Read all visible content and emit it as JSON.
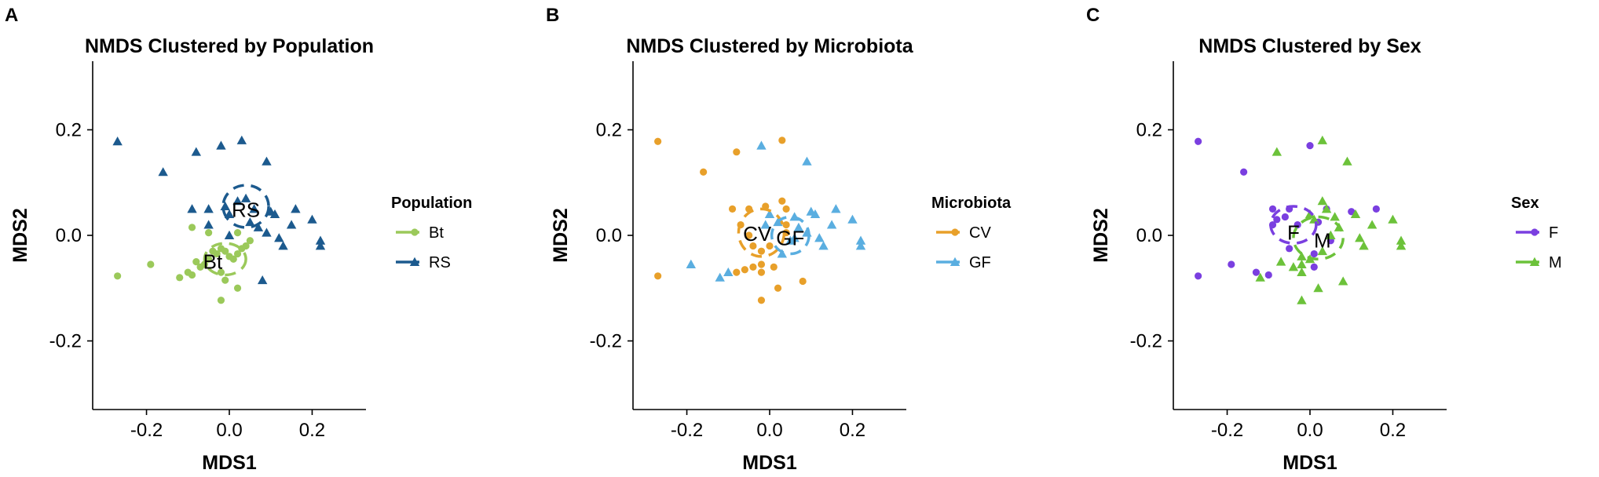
{
  "chart_data": [
    {
      "type": "scatter",
      "panel": "A",
      "title": "NMDS Clustered by Population",
      "xlabel": "MDS1",
      "ylabel": "MDS2",
      "xlim": [
        -0.33,
        0.33
      ],
      "ylim": [
        -0.33,
        0.33
      ],
      "xticks": [
        -0.2,
        0.0,
        0.2
      ],
      "yticks": [
        -0.2,
        0.0,
        0.2
      ],
      "tick_labels_x": [
        "-0.2",
        "0.0",
        "0.2"
      ],
      "tick_labels_y": [
        "-0.2",
        "0.0",
        "0.2"
      ],
      "grid": false,
      "legend": {
        "title": "Population",
        "position": "right"
      },
      "series": [
        {
          "name": "Bt",
          "color": "#9bc95a",
          "marker": "circle",
          "label_at": [
            -0.04,
            -0.05
          ],
          "ellipse": {
            "cx": -0.01,
            "cy": -0.045,
            "rx": 0.05,
            "ry": 0.03
          },
          "points": [
            [
              -0.27,
              -0.077
            ],
            [
              -0.19,
              -0.055
            ],
            [
              -0.12,
              -0.08
            ],
            [
              -0.1,
              -0.07
            ],
            [
              -0.09,
              -0.075
            ],
            [
              -0.08,
              -0.05
            ],
            [
              -0.07,
              -0.06
            ],
            [
              -0.06,
              -0.055
            ],
            [
              -0.05,
              -0.045
            ],
            [
              -0.04,
              -0.03
            ],
            [
              -0.03,
              -0.035
            ],
            [
              -0.02,
              -0.025
            ],
            [
              -0.01,
              -0.03
            ],
            [
              0.0,
              -0.04
            ],
            [
              0.01,
              -0.045
            ],
            [
              -0.02,
              -0.07
            ],
            [
              -0.01,
              -0.085
            ],
            [
              0.02,
              -0.035
            ],
            [
              0.03,
              -0.025
            ],
            [
              0.04,
              -0.02
            ],
            [
              0.05,
              -0.01
            ],
            [
              0.02,
              -0.1
            ],
            [
              -0.02,
              -0.123
            ],
            [
              -0.09,
              0.015
            ],
            [
              -0.05,
              0.005
            ],
            [
              0.02,
              0.005
            ]
          ]
        },
        {
          "name": "RS",
          "color": "#1c5a8e",
          "marker": "triangle",
          "label_at": [
            0.04,
            0.048
          ],
          "ellipse": {
            "cx": 0.04,
            "cy": 0.055,
            "rx": 0.055,
            "ry": 0.04
          },
          "points": [
            [
              -0.27,
              0.178
            ],
            [
              -0.16,
              0.12
            ],
            [
              -0.08,
              0.158
            ],
            [
              -0.02,
              0.17
            ],
            [
              0.03,
              0.18
            ],
            [
              0.09,
              0.14
            ],
            [
              -0.09,
              0.05
            ],
            [
              -0.05,
              0.05
            ],
            [
              -0.01,
              0.055
            ],
            [
              0.0,
              0.04
            ],
            [
              0.02,
              0.065
            ],
            [
              0.04,
              0.07
            ],
            [
              0.06,
              0.05
            ],
            [
              0.1,
              0.045
            ],
            [
              0.11,
              0.04
            ],
            [
              0.05,
              0.025
            ],
            [
              0.07,
              0.015
            ],
            [
              0.16,
              0.05
            ],
            [
              0.2,
              0.03
            ],
            [
              -0.05,
              0.02
            ],
            [
              0.09,
              0.005
            ],
            [
              0.12,
              -0.005
            ],
            [
              0.13,
              -0.02
            ],
            [
              0.15,
              0.02
            ],
            [
              0.22,
              -0.01
            ],
            [
              0.22,
              -0.02
            ],
            [
              0.08,
              -0.085
            ],
            [
              -0.0,
              0.0
            ]
          ]
        }
      ]
    },
    {
      "type": "scatter",
      "panel": "B",
      "title": "NMDS Clustered by Microbiota",
      "xlabel": "MDS1",
      "ylabel": "MDS2",
      "xlim": [
        -0.33,
        0.33
      ],
      "ylim": [
        -0.33,
        0.33
      ],
      "xticks": [
        -0.2,
        0.0,
        0.2
      ],
      "yticks": [
        -0.2,
        0.0,
        0.2
      ],
      "tick_labels_x": [
        "-0.2",
        "0.0",
        "0.2"
      ],
      "tick_labels_y": [
        "-0.2",
        "0.0",
        "0.2"
      ],
      "grid": false,
      "legend": {
        "title": "Microbiota",
        "position": "right"
      },
      "series": [
        {
          "name": "CV",
          "color": "#e8a02a",
          "marker": "circle",
          "label_at": [
            -0.03,
            0.003
          ],
          "ellipse": {
            "cx": -0.02,
            "cy": 0.005,
            "rx": 0.055,
            "ry": 0.045
          },
          "points": [
            [
              -0.27,
              0.178
            ],
            [
              -0.27,
              -0.077
            ],
            [
              -0.16,
              0.12
            ],
            [
              -0.08,
              0.158
            ],
            [
              0.03,
              0.18
            ],
            [
              -0.09,
              0.05
            ],
            [
              -0.05,
              0.05
            ],
            [
              0.03,
              0.065
            ],
            [
              0.04,
              0.05
            ],
            [
              -0.01,
              0.055
            ],
            [
              -0.07,
              0.02
            ],
            [
              -0.05,
              0.0
            ],
            [
              -0.04,
              -0.02
            ],
            [
              -0.02,
              -0.03
            ],
            [
              0.0,
              -0.02
            ],
            [
              -0.08,
              -0.07
            ],
            [
              -0.06,
              -0.065
            ],
            [
              -0.04,
              -0.06
            ],
            [
              -0.02,
              -0.055
            ],
            [
              -0.02,
              -0.07
            ],
            [
              0.01,
              -0.06
            ],
            [
              0.02,
              -0.1
            ],
            [
              0.08,
              -0.087
            ],
            [
              -0.02,
              -0.123
            ],
            [
              0.04,
              0.02
            ],
            [
              0.04,
              0.005
            ]
          ]
        },
        {
          "name": "GF",
          "color": "#5aaee0",
          "marker": "triangle",
          "label_at": [
            0.05,
            -0.005
          ],
          "ellipse": {
            "cx": 0.05,
            "cy": 0.0,
            "rx": 0.045,
            "ry": 0.035
          },
          "points": [
            [
              -0.02,
              0.17
            ],
            [
              0.09,
              0.14
            ],
            [
              -0.19,
              -0.055
            ],
            [
              -0.12,
              -0.08
            ],
            [
              -0.1,
              -0.07
            ],
            [
              0.0,
              0.04
            ],
            [
              0.02,
              0.025
            ],
            [
              0.06,
              0.035
            ],
            [
              0.1,
              0.045
            ],
            [
              0.11,
              0.04
            ],
            [
              0.07,
              0.015
            ],
            [
              0.16,
              0.05
            ],
            [
              0.2,
              0.03
            ],
            [
              0.09,
              0.005
            ],
            [
              0.12,
              -0.005
            ],
            [
              0.13,
              -0.02
            ],
            [
              0.15,
              0.02
            ],
            [
              0.22,
              -0.01
            ],
            [
              0.22,
              -0.02
            ],
            [
              0.05,
              -0.01
            ],
            [
              0.03,
              -0.035
            ],
            [
              0.06,
              -0.005
            ],
            [
              -0.01,
              0.02
            ]
          ]
        }
      ]
    },
    {
      "type": "scatter",
      "panel": "C",
      "title": "NMDS Clustered by Sex",
      "xlabel": "MDS1",
      "ylabel": "MDS2",
      "xlim": [
        -0.33,
        0.33
      ],
      "ylim": [
        -0.33,
        0.33
      ],
      "xticks": [
        -0.2,
        0.0,
        0.2
      ],
      "yticks": [
        -0.2,
        0.0,
        0.2
      ],
      "tick_labels_x": [
        "-0.2",
        "0.0",
        "0.2"
      ],
      "tick_labels_y": [
        "-0.2",
        "0.0",
        "0.2"
      ],
      "grid": false,
      "legend": {
        "title": "Sex",
        "position": "right"
      },
      "series": [
        {
          "name": "F",
          "color": "#7a3fe0",
          "marker": "circle",
          "label_at": [
            -0.04,
            0.005
          ],
          "ellipse": {
            "cx": -0.04,
            "cy": 0.02,
            "rx": 0.055,
            "ry": 0.035
          },
          "points": [
            [
              -0.27,
              0.178
            ],
            [
              -0.27,
              -0.077
            ],
            [
              -0.16,
              0.12
            ],
            [
              -0.0,
              0.17
            ],
            [
              -0.19,
              -0.055
            ],
            [
              -0.09,
              0.05
            ],
            [
              -0.05,
              0.05
            ],
            [
              -0.08,
              0.03
            ],
            [
              -0.09,
              0.02
            ],
            [
              -0.06,
              0.035
            ],
            [
              -0.03,
              0.02
            ],
            [
              0.02,
              0.025
            ],
            [
              0.04,
              0.05
            ],
            [
              0.1,
              0.045
            ],
            [
              0.16,
              0.05
            ],
            [
              0.01,
              -0.035
            ],
            [
              0.05,
              -0.01
            ],
            [
              0.01,
              -0.06
            ],
            [
              -0.05,
              -0.025
            ],
            [
              -0.13,
              -0.07
            ],
            [
              -0.1,
              -0.075
            ]
          ]
        },
        {
          "name": "M",
          "color": "#6cc23a",
          "marker": "triangle",
          "label_at": [
            0.03,
            -0.01
          ],
          "ellipse": {
            "cx": 0.02,
            "cy": -0.005,
            "rx": 0.06,
            "ry": 0.04
          },
          "points": [
            [
              -0.08,
              0.158
            ],
            [
              0.03,
              0.18
            ],
            [
              0.09,
              0.14
            ],
            [
              0.03,
              0.065
            ],
            [
              0.04,
              0.05
            ],
            [
              0.01,
              0.03
            ],
            [
              0.06,
              0.035
            ],
            [
              0.0,
              0.04
            ],
            [
              0.07,
              0.015
            ],
            [
              0.11,
              0.04
            ],
            [
              0.12,
              -0.005
            ],
            [
              0.13,
              -0.02
            ],
            [
              0.15,
              0.02
            ],
            [
              0.2,
              0.03
            ],
            [
              0.22,
              -0.01
            ],
            [
              0.22,
              -0.02
            ],
            [
              -0.12,
              -0.08
            ],
            [
              -0.07,
              -0.05
            ],
            [
              -0.04,
              -0.06
            ],
            [
              -0.02,
              -0.055
            ],
            [
              -0.02,
              -0.07
            ],
            [
              0.0,
              -0.045
            ],
            [
              0.02,
              -0.1
            ],
            [
              0.08,
              -0.087
            ],
            [
              -0.02,
              -0.123
            ],
            [
              0.05,
              0.0
            ],
            [
              0.03,
              -0.03
            ],
            [
              -0.02,
              -0.04
            ]
          ]
        }
      ]
    }
  ]
}
